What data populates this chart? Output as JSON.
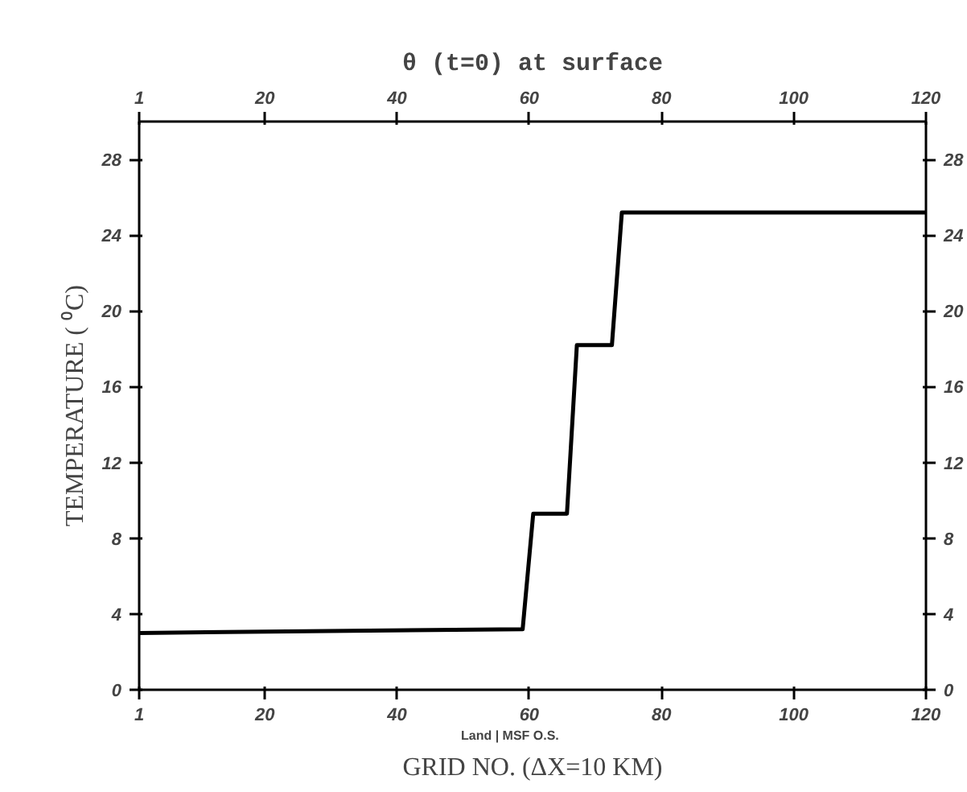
{
  "chart_data": {
    "type": "line",
    "title": "θ (t=0) at surface",
    "xlabel": "GRID NO. (ΔX=10 KM)",
    "ylabel": "TEMPERATURE ( ⁰C)",
    "x": [
      1,
      59,
      60.6,
      65.7,
      67.2,
      72.5,
      74,
      120
    ],
    "series": [
      {
        "color": "#000000",
        "values": [
          3.0,
          3.2,
          9.3,
          9.3,
          18.2,
          18.2,
          25.2,
          25.2
        ]
      }
    ],
    "xlim": [
      1,
      120
    ],
    "xticks": [
      1,
      20,
      40,
      60,
      80,
      100,
      120
    ],
    "x2lim": [
      1,
      120
    ],
    "x2ticks": [
      1,
      20,
      40,
      60,
      80,
      100,
      120
    ],
    "ylim": [
      0,
      30
    ],
    "yticks": [
      0,
      4,
      8,
      12,
      16,
      20,
      24,
      28
    ],
    "y2lim": [
      0,
      30
    ],
    "y2ticks": [
      0,
      4,
      8,
      12,
      16,
      20,
      24,
      28
    ],
    "annotations": [
      "Land |  MSF O.S."
    ],
    "grid": false,
    "marker": "none",
    "line_style": "solid"
  }
}
